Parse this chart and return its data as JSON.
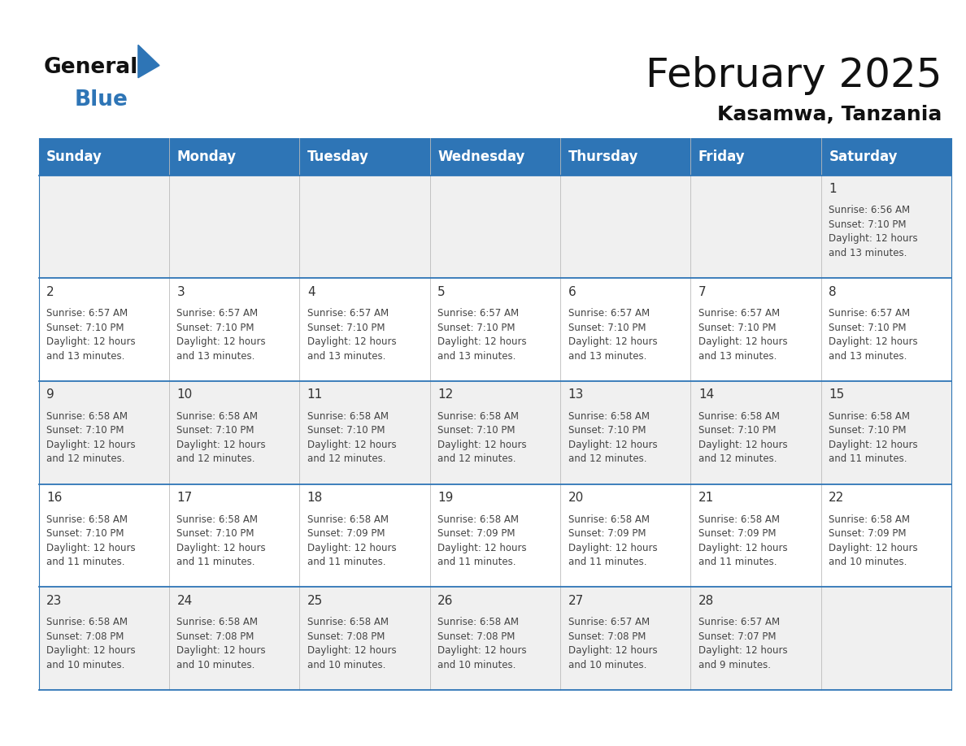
{
  "title": "February 2025",
  "subtitle": "Kasamwa, Tanzania",
  "header_bg": "#2E75B6",
  "header_text_color": "#FFFFFF",
  "cell_bg_odd": "#F0F0F0",
  "cell_bg_even": "#FFFFFF",
  "border_color": "#2E75B6",
  "day_headers": [
    "Sunday",
    "Monday",
    "Tuesday",
    "Wednesday",
    "Thursday",
    "Friday",
    "Saturday"
  ],
  "weeks": [
    [
      {
        "day": null,
        "sunrise": null,
        "sunset": null,
        "daylight": null
      },
      {
        "day": null,
        "sunrise": null,
        "sunset": null,
        "daylight": null
      },
      {
        "day": null,
        "sunrise": null,
        "sunset": null,
        "daylight": null
      },
      {
        "day": null,
        "sunrise": null,
        "sunset": null,
        "daylight": null
      },
      {
        "day": null,
        "sunrise": null,
        "sunset": null,
        "daylight": null
      },
      {
        "day": null,
        "sunrise": null,
        "sunset": null,
        "daylight": null
      },
      {
        "day": 1,
        "sunrise": "6:56 AM",
        "sunset": "7:10 PM",
        "daylight": "12 hours\nand 13 minutes."
      }
    ],
    [
      {
        "day": 2,
        "sunrise": "6:57 AM",
        "sunset": "7:10 PM",
        "daylight": "12 hours\nand 13 minutes."
      },
      {
        "day": 3,
        "sunrise": "6:57 AM",
        "sunset": "7:10 PM",
        "daylight": "12 hours\nand 13 minutes."
      },
      {
        "day": 4,
        "sunrise": "6:57 AM",
        "sunset": "7:10 PM",
        "daylight": "12 hours\nand 13 minutes."
      },
      {
        "day": 5,
        "sunrise": "6:57 AM",
        "sunset": "7:10 PM",
        "daylight": "12 hours\nand 13 minutes."
      },
      {
        "day": 6,
        "sunrise": "6:57 AM",
        "sunset": "7:10 PM",
        "daylight": "12 hours\nand 13 minutes."
      },
      {
        "day": 7,
        "sunrise": "6:57 AM",
        "sunset": "7:10 PM",
        "daylight": "12 hours\nand 13 minutes."
      },
      {
        "day": 8,
        "sunrise": "6:57 AM",
        "sunset": "7:10 PM",
        "daylight": "12 hours\nand 13 minutes."
      }
    ],
    [
      {
        "day": 9,
        "sunrise": "6:58 AM",
        "sunset": "7:10 PM",
        "daylight": "12 hours\nand 12 minutes."
      },
      {
        "day": 10,
        "sunrise": "6:58 AM",
        "sunset": "7:10 PM",
        "daylight": "12 hours\nand 12 minutes."
      },
      {
        "day": 11,
        "sunrise": "6:58 AM",
        "sunset": "7:10 PM",
        "daylight": "12 hours\nand 12 minutes."
      },
      {
        "day": 12,
        "sunrise": "6:58 AM",
        "sunset": "7:10 PM",
        "daylight": "12 hours\nand 12 minutes."
      },
      {
        "day": 13,
        "sunrise": "6:58 AM",
        "sunset": "7:10 PM",
        "daylight": "12 hours\nand 12 minutes."
      },
      {
        "day": 14,
        "sunrise": "6:58 AM",
        "sunset": "7:10 PM",
        "daylight": "12 hours\nand 12 minutes."
      },
      {
        "day": 15,
        "sunrise": "6:58 AM",
        "sunset": "7:10 PM",
        "daylight": "12 hours\nand 11 minutes."
      }
    ],
    [
      {
        "day": 16,
        "sunrise": "6:58 AM",
        "sunset": "7:10 PM",
        "daylight": "12 hours\nand 11 minutes."
      },
      {
        "day": 17,
        "sunrise": "6:58 AM",
        "sunset": "7:10 PM",
        "daylight": "12 hours\nand 11 minutes."
      },
      {
        "day": 18,
        "sunrise": "6:58 AM",
        "sunset": "7:09 PM",
        "daylight": "12 hours\nand 11 minutes."
      },
      {
        "day": 19,
        "sunrise": "6:58 AM",
        "sunset": "7:09 PM",
        "daylight": "12 hours\nand 11 minutes."
      },
      {
        "day": 20,
        "sunrise": "6:58 AM",
        "sunset": "7:09 PM",
        "daylight": "12 hours\nand 11 minutes."
      },
      {
        "day": 21,
        "sunrise": "6:58 AM",
        "sunset": "7:09 PM",
        "daylight": "12 hours\nand 11 minutes."
      },
      {
        "day": 22,
        "sunrise": "6:58 AM",
        "sunset": "7:09 PM",
        "daylight": "12 hours\nand 10 minutes."
      }
    ],
    [
      {
        "day": 23,
        "sunrise": "6:58 AM",
        "sunset": "7:08 PM",
        "daylight": "12 hours\nand 10 minutes."
      },
      {
        "day": 24,
        "sunrise": "6:58 AM",
        "sunset": "7:08 PM",
        "daylight": "12 hours\nand 10 minutes."
      },
      {
        "day": 25,
        "sunrise": "6:58 AM",
        "sunset": "7:08 PM",
        "daylight": "12 hours\nand 10 minutes."
      },
      {
        "day": 26,
        "sunrise": "6:58 AM",
        "sunset": "7:08 PM",
        "daylight": "12 hours\nand 10 minutes."
      },
      {
        "day": 27,
        "sunrise": "6:57 AM",
        "sunset": "7:08 PM",
        "daylight": "12 hours\nand 10 minutes."
      },
      {
        "day": 28,
        "sunrise": "6:57 AM",
        "sunset": "7:07 PM",
        "daylight": "12 hours\nand 9 minutes."
      },
      {
        "day": null,
        "sunrise": null,
        "sunset": null,
        "daylight": null
      }
    ]
  ],
  "logo_text1": "General",
  "logo_text2": "Blue",
  "logo_triangle_color": "#2E75B6",
  "text_color_info": "#444444",
  "day_num_color": "#333333",
  "cell_text_fontsize": 8.5,
  "day_num_fontsize": 11,
  "header_fontsize": 12,
  "title_fontsize": 36,
  "subtitle_fontsize": 18
}
